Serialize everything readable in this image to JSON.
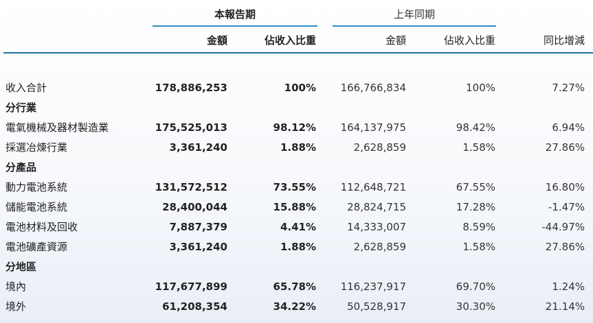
{
  "header": {
    "current_period": "本報告期",
    "prior_period": "上年同期",
    "col_amount": "金額",
    "col_share": "佔收入比重",
    "col_prior_amount": "金額",
    "col_prior_share": "佔收入比重",
    "col_yoy": "同比增減"
  },
  "rows": [
    {
      "type": "data",
      "label": "收入合計",
      "amount": "178,886,253",
      "share": "100%",
      "prior_amount": "166,766,834",
      "prior_share": "100%",
      "yoy": "7.27%"
    },
    {
      "type": "section",
      "label": "分行業"
    },
    {
      "type": "data",
      "label": "電氣機械及器材製造業",
      "amount": "175,525,013",
      "share": "98.12%",
      "prior_amount": "164,137,975",
      "prior_share": "98.42%",
      "yoy": "6.94%"
    },
    {
      "type": "data",
      "label": "採選冶煉行業",
      "amount": "3,361,240",
      "share": "1.88%",
      "prior_amount": "2,628,859",
      "prior_share": "1.58%",
      "yoy": "27.86%"
    },
    {
      "type": "section",
      "label": "分產品"
    },
    {
      "type": "data",
      "label": "動力電池系統",
      "amount": "131,572,512",
      "share": "73.55%",
      "prior_amount": "112,648,721",
      "prior_share": "67.55%",
      "yoy": "16.80%"
    },
    {
      "type": "data",
      "label": "儲能電池系統",
      "amount": "28,400,044",
      "share": "15.88%",
      "prior_amount": "28,824,715",
      "prior_share": "17.28%",
      "yoy": "-1.47%"
    },
    {
      "type": "data",
      "label": "電池材料及回收",
      "amount": "7,887,379",
      "share": "4.41%",
      "prior_amount": "14,333,007",
      "prior_share": "8.59%",
      "yoy": "-44.97%"
    },
    {
      "type": "data",
      "label": "電池礦產資源",
      "amount": "3,361,240",
      "share": "1.88%",
      "prior_amount": "2,628,859",
      "prior_share": "1.58%",
      "yoy": "27.86%"
    },
    {
      "type": "section",
      "label": "分地區"
    },
    {
      "type": "data",
      "label": "境內",
      "amount": "117,677,899",
      "share": "65.78%",
      "prior_amount": "116,237,917",
      "prior_share": "69.70%",
      "yoy": "1.24%"
    },
    {
      "type": "data",
      "label": "境外",
      "amount": "61,208,354",
      "share": "34.22%",
      "prior_amount": "50,528,917",
      "prior_share": "30.30%",
      "yoy": "21.14%"
    }
  ]
}
